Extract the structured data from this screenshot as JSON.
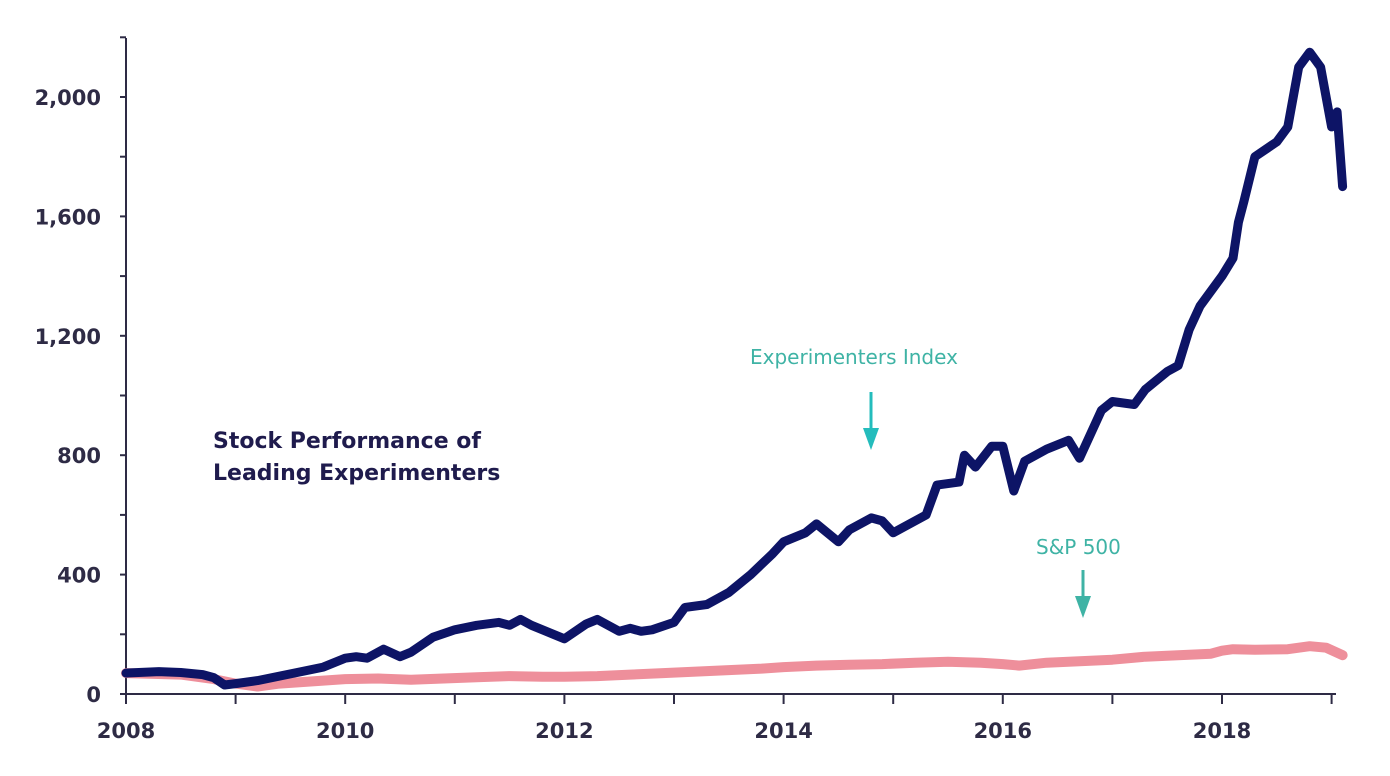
{
  "chart_data": {
    "type": "line",
    "title_lines": [
      "Stock Performance of",
      "Leading Experimenters"
    ],
    "xlabel": "",
    "ylabel": "",
    "xlim": [
      2008,
      2019.1
    ],
    "ylim": [
      0,
      2200
    ],
    "x_ticks": [
      2008,
      2010,
      2012,
      2014,
      2016,
      2018
    ],
    "x_tick_labels": [
      "2008",
      "2010",
      "2012",
      "2014",
      "2016",
      "2018"
    ],
    "y_ticks": [
      0,
      400,
      800,
      1200,
      1600,
      2000
    ],
    "y_tick_labels": [
      "0",
      "400",
      "800",
      "1,200",
      "1,600",
      "2,000"
    ],
    "grid": false,
    "annotations": [
      {
        "text": "Experimenters Index",
        "series": "Experimenters Index",
        "color": "#24bcbc"
      },
      {
        "text": "S&P 500",
        "series": "S&P 500",
        "color": "#3fb3a5"
      }
    ],
    "series": [
      {
        "name": "Experimenters Index",
        "color": "#0d1466",
        "x": [
          2008,
          2008.3,
          2008.5,
          2008.7,
          2008.8,
          2008.9,
          2009.0,
          2009.2,
          2009.4,
          2009.6,
          2009.8,
          2010.0,
          2010.1,
          2010.2,
          2010.35,
          2010.5,
          2010.6,
          2010.8,
          2011.0,
          2011.2,
          2011.4,
          2011.5,
          2011.6,
          2011.7,
          2011.9,
          2012.0,
          2012.2,
          2012.3,
          2012.5,
          2012.6,
          2012.7,
          2012.8,
          2013.0,
          2013.1,
          2013.3,
          2013.5,
          2013.7,
          2013.9,
          2014.0,
          2014.2,
          2014.3,
          2014.5,
          2014.6,
          2014.8,
          2014.9,
          2015.0,
          2015.1,
          2015.3,
          2015.4,
          2015.6,
          2015.65,
          2015.75,
          2015.9,
          2016.0,
          2016.1,
          2016.2,
          2016.4,
          2016.6,
          2016.7,
          2016.9,
          2017.0,
          2017.2,
          2017.3,
          2017.5,
          2017.6,
          2017.7,
          2017.8,
          2018.0,
          2018.1,
          2018.15,
          2018.2,
          2018.3,
          2018.5,
          2018.6,
          2018.7,
          2018.8,
          2018.9,
          2018.95,
          2019.0,
          2019.05,
          2019.1
        ],
        "values": [
          70,
          75,
          72,
          65,
          55,
          30,
          35,
          45,
          60,
          75,
          90,
          120,
          125,
          120,
          150,
          125,
          140,
          190,
          215,
          230,
          240,
          230,
          250,
          230,
          200,
          185,
          235,
          250,
          210,
          220,
          210,
          215,
          240,
          290,
          300,
          340,
          400,
          470,
          510,
          540,
          570,
          510,
          550,
          590,
          580,
          540,
          560,
          600,
          700,
          710,
          800,
          760,
          830,
          830,
          680,
          780,
          820,
          850,
          790,
          950,
          980,
          970,
          1020,
          1080,
          1100,
          1220,
          1300,
          1400,
          1460,
          1580,
          1650,
          1800,
          1850,
          1900,
          2100,
          2150,
          2100,
          2000,
          1900,
          1950,
          1700
        ]
      },
      {
        "name": "S&P 500",
        "color": "#ee8f9b",
        "x": [
          2008,
          2008.5,
          2008.8,
          2009.0,
          2009.2,
          2009.4,
          2009.6,
          2009.8,
          2010.0,
          2010.3,
          2010.6,
          2010.9,
          2011.2,
          2011.5,
          2011.8,
          2012.0,
          2012.3,
          2012.6,
          2012.9,
          2013.2,
          2013.5,
          2013.8,
          2014.0,
          2014.3,
          2014.6,
          2014.9,
          2015.2,
          2015.5,
          2015.8,
          2016.0,
          2016.15,
          2016.4,
          2016.7,
          2017.0,
          2017.3,
          2017.6,
          2017.9,
          2018.0,
          2018.1,
          2018.3,
          2018.6,
          2018.8,
          2018.95,
          2019.1
        ],
        "values": [
          70,
          65,
          50,
          35,
          25,
          35,
          40,
          45,
          50,
          52,
          48,
          52,
          56,
          60,
          58,
          58,
          60,
          65,
          70,
          75,
          80,
          85,
          90,
          95,
          98,
          100,
          105,
          108,
          105,
          100,
          95,
          105,
          110,
          115,
          125,
          130,
          135,
          145,
          150,
          148,
          150,
          160,
          155,
          130
        ]
      }
    ]
  }
}
